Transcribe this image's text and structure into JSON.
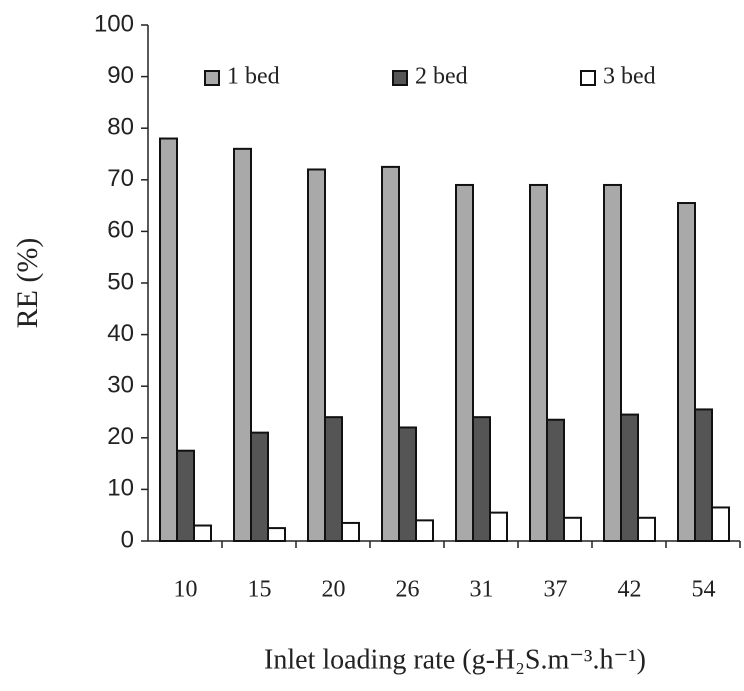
{
  "chart_data": {
    "type": "bar",
    "y_label": "RE (%)",
    "x_label": "Inlet loading rate (g-H₂S.m⁻³.h⁻¹)",
    "categories": [
      "10",
      "15",
      "20",
      "26",
      "31",
      "37",
      "42",
      "54"
    ],
    "series": [
      {
        "name": "1 bed",
        "color": "#a9a9a9",
        "values": [
          78,
          76,
          72,
          72.5,
          69,
          69,
          69,
          65.5
        ]
      },
      {
        "name": "2 bed",
        "color": "#555555",
        "values": [
          17.5,
          21,
          24,
          22,
          24,
          23.5,
          24.5,
          25.5
        ]
      },
      {
        "name": "3 bed",
        "color": "#ffffff",
        "values": [
          3,
          2.5,
          3.5,
          4,
          5.5,
          4.5,
          4.5,
          6.5
        ]
      }
    ],
    "ylim": [
      0,
      100
    ],
    "yticks": [
      0,
      10,
      20,
      30,
      40,
      50,
      60,
      70,
      80,
      90,
      100
    ],
    "grid": false,
    "legend": "top"
  }
}
